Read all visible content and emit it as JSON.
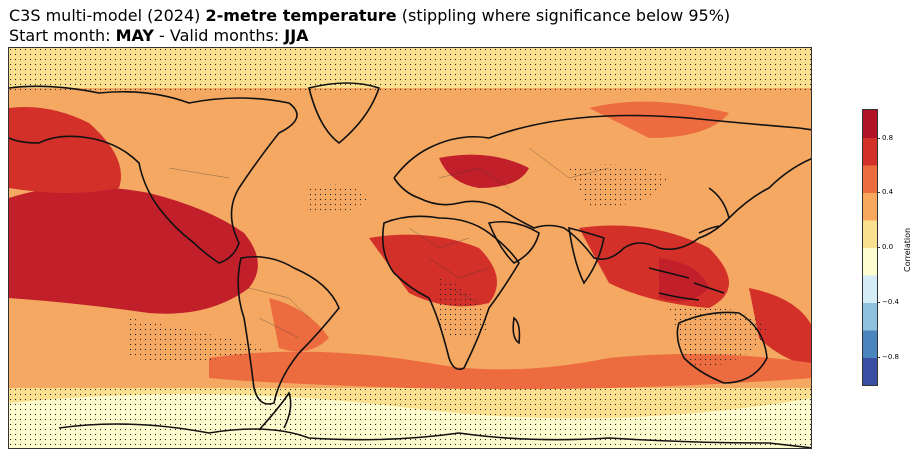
{
  "title": {
    "line1_prefix": "C3S multi-model (2024) ",
    "line1_bold": "2-metre temperature",
    "line1_suffix": " (stippling where significance below 95%)",
    "line2_prefix": "Start month: ",
    "start_month": "MAY",
    "line2_middle": " - Valid months: ",
    "valid_months": "JJA"
  },
  "colorbar": {
    "label": "Correlation",
    "ticks": [
      "0.8",
      "0.4",
      "0.0",
      "−0.4",
      "−0.8"
    ],
    "tick_values": [
      0.8,
      0.4,
      0.0,
      -0.4,
      -0.8
    ],
    "range": [
      -1.0,
      1.0
    ],
    "colors": [
      "#3a4fa3",
      "#4a86bd",
      "#8fc2de",
      "#d4ecf3",
      "#fefdd0",
      "#fbe090",
      "#f7a85c",
      "#ec6b3f",
      "#d3302a",
      "#b01227"
    ]
  },
  "map": {
    "projection": "plate-carree",
    "dominant_color": "#f7a85c",
    "ocean_high_color": "#c11f2a"
  }
}
